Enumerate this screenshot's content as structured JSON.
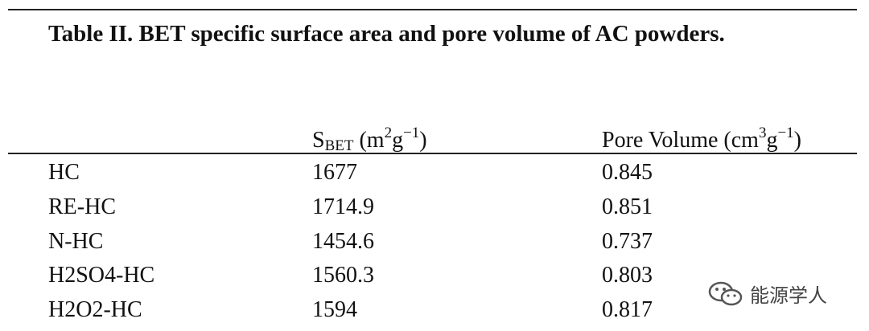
{
  "title": "Table II. BET specific surface area and pore volume of AC powders.",
  "table": {
    "header": {
      "sbet": [
        "S",
        "BET",
        " (m",
        "2",
        "g",
        "−1",
        ")"
      ],
      "pore_volume": [
        "Pore Volume (cm",
        "3",
        "g",
        "−1",
        ")"
      ]
    },
    "rows": [
      [
        "HC",
        "1677",
        "0.845"
      ],
      [
        "RE-HC",
        "1714.9",
        "0.851"
      ],
      [
        "N-HC",
        "1454.6",
        "0.737"
      ],
      [
        "H2SO4-HC",
        "1560.3",
        "0.803"
      ],
      [
        "H2O2-HC",
        "1594",
        "0.817"
      ]
    ]
  },
  "watermark": "能源学人"
}
